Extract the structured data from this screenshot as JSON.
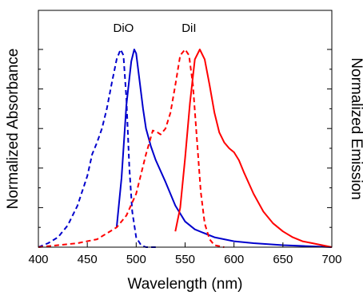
{
  "chart_data": {
    "type": "line",
    "xlabel": "Wavelength (nm)",
    "ylabel_left": "Normalized Absorbance",
    "ylabel_right": "Normalized Emission",
    "xlim": [
      400,
      700
    ],
    "ylim": [
      0,
      1.05
    ],
    "xticks": [
      400,
      450,
      500,
      550,
      600,
      650,
      700
    ],
    "yticks_minor": [
      0.2,
      0.4,
      0.6,
      0.8,
      1.0
    ],
    "grid": false,
    "annotations": [
      {
        "text": "DiO",
        "x": 487,
        "y": 1.08
      },
      {
        "text": "DiI",
        "x": 554,
        "y": 1.08
      }
    ],
    "series": [
      {
        "key": "dio-absorbance",
        "color": "#0000cc",
        "dash": "dashed",
        "x": [
          400,
          410,
          420,
          430,
          440,
          450,
          455,
          460,
          465,
          470,
          475,
          480,
          484,
          487,
          490,
          493,
          496,
          500,
          505,
          510,
          520
        ],
        "y": [
          0.0,
          0.02,
          0.05,
          0.11,
          0.21,
          0.36,
          0.47,
          0.53,
          0.6,
          0.7,
          0.83,
          0.95,
          1.0,
          0.97,
          0.75,
          0.4,
          0.18,
          0.05,
          0.01,
          0.0,
          0.0
        ]
      },
      {
        "key": "dio-emission",
        "color": "#0000cc",
        "dash": "solid",
        "x": [
          480,
          485,
          490,
          495,
          498,
          500,
          503,
          507,
          510,
          515,
          520,
          530,
          540,
          550,
          560,
          580,
          600,
          620,
          650,
          700
        ],
        "y": [
          0.1,
          0.35,
          0.72,
          0.94,
          1.0,
          0.98,
          0.86,
          0.7,
          0.6,
          0.51,
          0.44,
          0.33,
          0.21,
          0.13,
          0.09,
          0.05,
          0.03,
          0.02,
          0.01,
          0.0
        ]
      },
      {
        "key": "dii-absorbance",
        "color": "#ff0000",
        "dash": "dashed",
        "x": [
          400,
          420,
          440,
          460,
          480,
          490,
          500,
          510,
          517,
          522,
          525,
          530,
          535,
          540,
          545,
          550,
          554,
          558,
          562,
          566,
          570,
          575,
          580,
          590
        ],
        "y": [
          0.0,
          0.01,
          0.02,
          0.04,
          0.1,
          0.16,
          0.27,
          0.47,
          0.59,
          0.58,
          0.57,
          0.6,
          0.68,
          0.82,
          0.97,
          1.0,
          0.97,
          0.82,
          0.55,
          0.28,
          0.12,
          0.04,
          0.01,
          0.0
        ]
      },
      {
        "key": "dii-emission",
        "color": "#ff0000",
        "dash": "solid",
        "x": [
          540,
          545,
          550,
          555,
          560,
          565,
          570,
          575,
          580,
          585,
          590,
          595,
          600,
          605,
          610,
          620,
          630,
          640,
          650,
          660,
          670,
          680,
          690,
          700
        ],
        "y": [
          0.08,
          0.2,
          0.45,
          0.73,
          0.95,
          1.0,
          0.95,
          0.82,
          0.68,
          0.58,
          0.53,
          0.5,
          0.48,
          0.44,
          0.38,
          0.27,
          0.18,
          0.12,
          0.08,
          0.05,
          0.03,
          0.02,
          0.01,
          0.0
        ]
      }
    ]
  }
}
